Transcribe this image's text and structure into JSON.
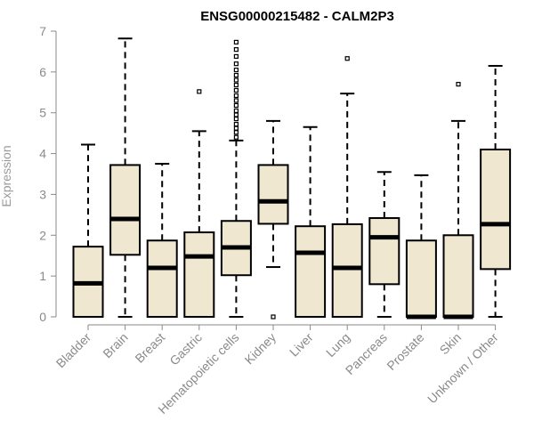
{
  "chart_data": {
    "type": "boxplot",
    "title": "ENSG00000215482 - CALM2P3",
    "ylabel": "Expression",
    "xlabel": "",
    "ylim": [
      0,
      7
    ],
    "yticks": [
      0,
      1,
      2,
      3,
      4,
      5,
      6,
      7
    ],
    "grid": false,
    "legend": "none",
    "colors": {
      "box_fill": "#efe7cf",
      "box_stroke": "#000000",
      "axis": "#8a8a8a"
    },
    "categories": [
      "Bladder",
      "Brain",
      "Breast",
      "Gastric",
      "Hematopoietic cells",
      "Kidney",
      "Liver",
      "Lung",
      "Pancreas",
      "Prostate",
      "Skin",
      "Unknown / Other"
    ],
    "boxes": [
      {
        "category": "Bladder",
        "min": 0,
        "q1": 0,
        "median": 0.82,
        "q3": 1.72,
        "max": 4.22,
        "outliers": []
      },
      {
        "category": "Brain",
        "min": 0,
        "q1": 1.52,
        "median": 2.4,
        "q3": 3.72,
        "max": 6.82,
        "outliers": []
      },
      {
        "category": "Breast",
        "min": 0,
        "q1": 0,
        "median": 1.2,
        "q3": 1.87,
        "max": 3.75,
        "outliers": []
      },
      {
        "category": "Gastric",
        "min": 0,
        "q1": 0,
        "median": 1.48,
        "q3": 2.07,
        "max": 4.55,
        "outliers": [
          5.52
        ]
      },
      {
        "category": "Hematopoietic cells",
        "min": 0,
        "q1": 1.02,
        "median": 1.7,
        "q3": 2.35,
        "max": 4.32,
        "outliers": [
          4.4,
          4.52,
          4.62,
          4.72,
          4.85,
          4.95,
          5.05,
          5.18,
          5.3,
          5.42,
          5.55,
          5.68,
          5.8,
          5.92,
          6.05,
          6.2,
          6.38,
          6.55,
          6.73
        ]
      },
      {
        "category": "Kidney",
        "min": 1.22,
        "q1": 2.28,
        "median": 2.83,
        "q3": 3.72,
        "max": 4.8,
        "outliers": [
          0
        ]
      },
      {
        "category": "Liver",
        "min": 0,
        "q1": 0,
        "median": 1.57,
        "q3": 2.22,
        "max": 4.65,
        "outliers": []
      },
      {
        "category": "Lung",
        "min": 0,
        "q1": 0,
        "median": 1.2,
        "q3": 2.27,
        "max": 5.47,
        "outliers": [
          6.33
        ]
      },
      {
        "category": "Pancreas",
        "min": 0,
        "q1": 0.8,
        "median": 1.95,
        "q3": 2.42,
        "max": 3.55,
        "outliers": []
      },
      {
        "category": "Prostate",
        "min": 0,
        "q1": 0,
        "median": 0,
        "q3": 1.87,
        "max": 3.47,
        "outliers": []
      },
      {
        "category": "Skin",
        "min": 0,
        "q1": 0,
        "median": 0,
        "q3": 2.0,
        "max": 4.8,
        "outliers": [
          5.7
        ]
      },
      {
        "category": "Unknown / Other",
        "min": 0,
        "q1": 1.17,
        "median": 2.27,
        "q3": 4.1,
        "max": 6.15,
        "outliers": []
      }
    ]
  }
}
